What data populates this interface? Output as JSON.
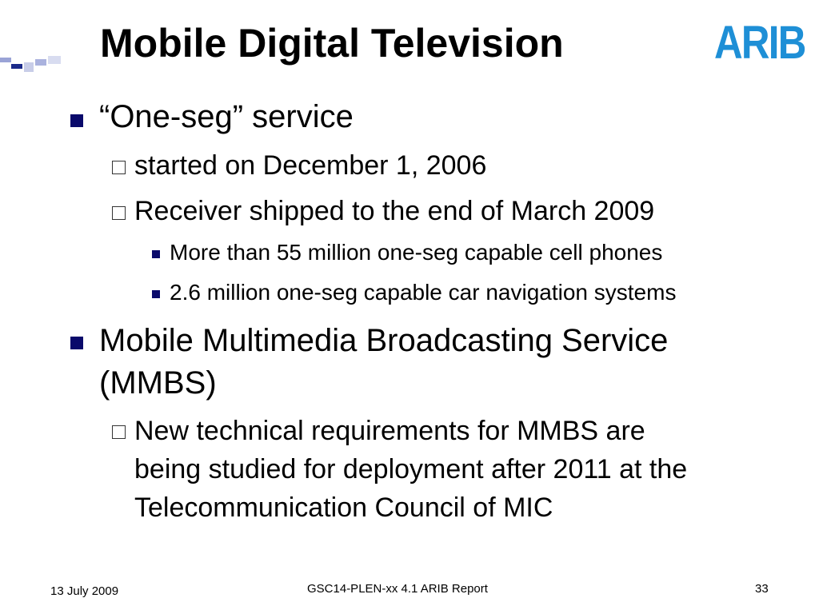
{
  "title": "Mobile Digital Television",
  "logo_text": "ARIB",
  "colors": {
    "bullet": "#0a0a6b",
    "logo": "#1e8fd6"
  },
  "bullets": [
    {
      "text": "“One-seg” service",
      "sub": [
        {
          "text": "started on December 1, 2006"
        },
        {
          "text": "Receiver shipped to the end of March 2009",
          "sub": [
            "More than 55 million one-seg capable cell phones",
            "2.6 million one-seg capable car navigation systems"
          ]
        }
      ]
    },
    {
      "text_line1": "Mobile Multimedia Broadcasting Service",
      "text_line2": "(MMBS)",
      "sub": [
        {
          "line1": " New technical requirements for MMBS are",
          "line2": "being studied for deployment after 2011 at the",
          "line3": "Telecommunication Council of MIC"
        }
      ]
    }
  ],
  "footer": {
    "date": "13 July 2009",
    "center": "GSC14-PLEN-xx 4.1 ARIB Report",
    "page": "33"
  }
}
